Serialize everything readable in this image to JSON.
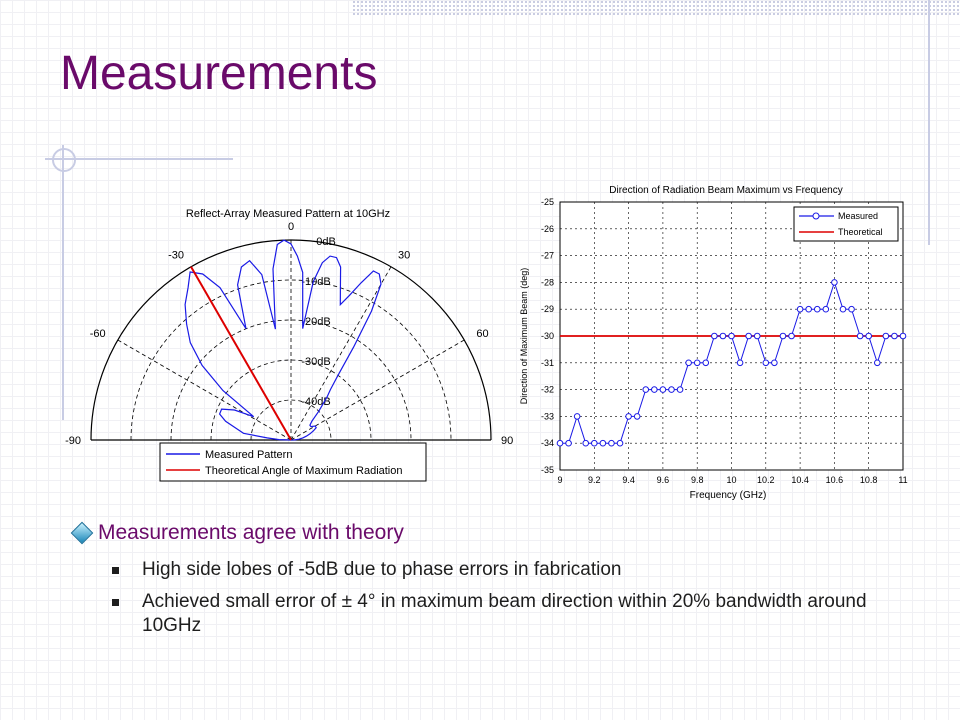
{
  "slide": {
    "title": "Measurements",
    "bullets": {
      "main": "Measurements agree with theory",
      "sub": [
        "High side lobes of -5dB due to phase errors in fabrication",
        "Achieved small error of ± 4° in maximum beam direction within 20% bandwidth around 10GHz"
      ]
    }
  },
  "chart_data": [
    {
      "type": "polar",
      "title": "Reflect-Array Measured Pattern at 10GHz",
      "angle_labels": [
        "-90",
        "-60",
        "-30",
        "0",
        "30",
        "60",
        "90"
      ],
      "radial_labels": [
        "0dB",
        "-10dB",
        "-20dB",
        "-30dB",
        "-40dB"
      ],
      "radial_range_db": [
        -50,
        0
      ],
      "legend": [
        "Measured Pattern",
        "Theoretical Angle of Maximum Radiation"
      ],
      "legend_placement": "bottom",
      "colors": {
        "measured": "#1a1ae6",
        "theoretical": "#dd0000"
      },
      "theoretical_angle_deg": -30,
      "measured": {
        "theta_deg": [
          -90,
          -88,
          -85,
          -82,
          -78,
          -74,
          -70,
          -66,
          -62,
          -58,
          -54,
          -50,
          -46,
          -42,
          -38,
          -34,
          -31,
          -28,
          -25,
          -22,
          -19,
          -16,
          -13,
          -10,
          -8,
          -6,
          -4,
          -2,
          0,
          2,
          4,
          6,
          8,
          10,
          12,
          14,
          16,
          18,
          20,
          22,
          24,
          26,
          28,
          30,
          32,
          34,
          36,
          38,
          40,
          44,
          48,
          52,
          56,
          60,
          64,
          68,
          72,
          76,
          80,
          84,
          88,
          90
        ],
        "gain_db": [
          -50,
          -47,
          -44,
          -38,
          -36,
          -33,
          -31,
          -31,
          -34,
          -39,
          -29,
          -21,
          -15,
          -11,
          -7,
          -4,
          -1,
          -3,
          -8,
          -20,
          -9,
          -5,
          -4,
          -8,
          -22,
          -7,
          -1,
          0,
          -1,
          -4,
          -8,
          -22,
          -10,
          -5,
          -3,
          -3,
          -5,
          -10,
          -14,
          -11,
          -7,
          -3,
          -3,
          -5,
          -12,
          -22,
          -30,
          -34,
          -36,
          -40,
          -43,
          -44,
          -44,
          -43,
          -43,
          -44,
          -45,
          -46,
          -47,
          -48,
          -49,
          -50
        ]
      }
    },
    {
      "type": "line",
      "title": "Direction of Radiation Beam Maximum vs Frequency",
      "xlabel": "Frequency (GHz)",
      "ylabel": "Direction of Maximum Beam (deg)",
      "xlim": [
        9,
        11
      ],
      "ylim": [
        -35,
        -25
      ],
      "xticks": [
        "9",
        "9.2",
        "9.4",
        "9.6",
        "9.8",
        "10",
        "10.2",
        "10.4",
        "10.6",
        "10.8",
        "11"
      ],
      "yticks": [
        "-25",
        "-26",
        "-27",
        "-28",
        "-29",
        "-30",
        "-31",
        "-32",
        "-33",
        "-34",
        "-35"
      ],
      "grid": true,
      "legend_placement": "top-right",
      "series": [
        {
          "name": "Measured",
          "color": "#1a1ae6",
          "marker": "circle",
          "x": [
            9.0,
            9.05,
            9.1,
            9.15,
            9.2,
            9.25,
            9.3,
            9.35,
            9.4,
            9.45,
            9.5,
            9.55,
            9.6,
            9.65,
            9.7,
            9.75,
            9.8,
            9.85,
            9.9,
            9.95,
            10.0,
            10.05,
            10.1,
            10.15,
            10.2,
            10.25,
            10.3,
            10.35,
            10.4,
            10.45,
            10.5,
            10.55,
            10.6,
            10.65,
            10.7,
            10.75,
            10.8,
            10.85,
            10.9,
            10.95,
            11.0
          ],
          "y": [
            -34,
            -34,
            -33,
            -34,
            -34,
            -34,
            -34,
            -34,
            -33,
            -33,
            -32,
            -32,
            -32,
            -32,
            -32,
            -31,
            -31,
            -31,
            -30,
            -30,
            -30,
            -31,
            -30,
            -30,
            -31,
            -31,
            -30,
            -30,
            -29,
            -29,
            -29,
            -29,
            -28,
            -29,
            -29,
            -30,
            -30,
            -31,
            -30,
            -30,
            -30
          ]
        },
        {
          "name": "Theoretical",
          "color": "#dd0000",
          "x": [
            9.0,
            11.0
          ],
          "y": [
            -30,
            -30
          ]
        }
      ]
    }
  ]
}
